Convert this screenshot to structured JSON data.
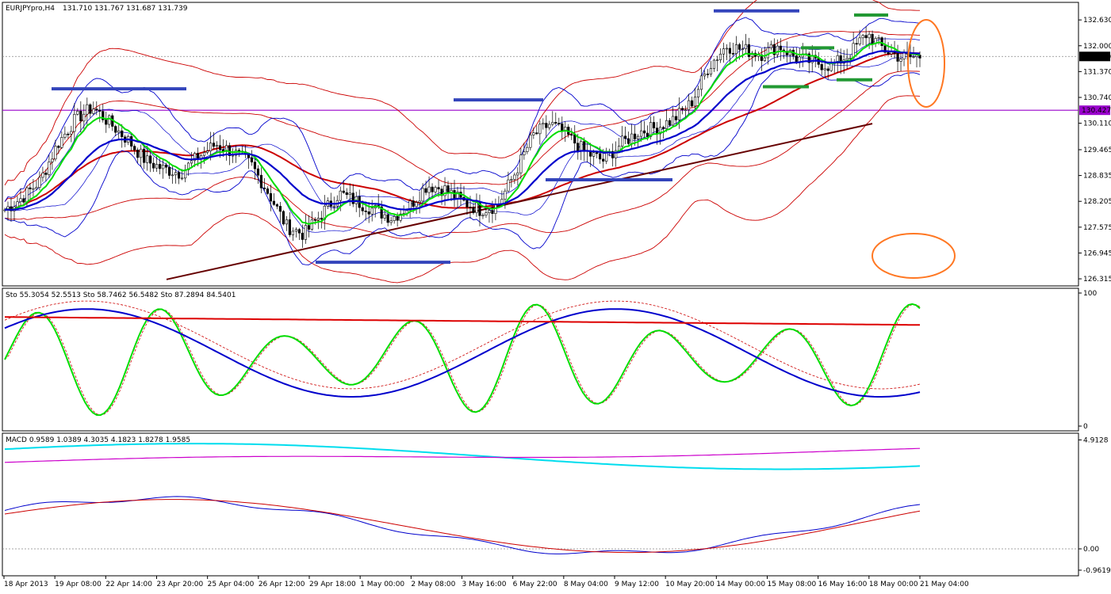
{
  "header": {
    "symbol": "EURJPYpro,H4",
    "ohlc": "131.710 131.767 131.687 131.739"
  },
  "stoch_header": "Sto 55.3054 52.5513  Sto 58.7462 56.5482  Sto 87.2894 84.5401",
  "macd_header": "MACD 0.9589 1.0389 4.3035 4.1823 1.8278 1.9585",
  "colors": {
    "ema_fast": "#00dd00",
    "ema_slow": "#0000cc",
    "bollinger_red": "#cc0000",
    "bollinger_blue": "#0000cc",
    "trendline": "#660000",
    "level_line": "#9900cc",
    "support_marks": "#3344bb",
    "resistance_marks": "#229933",
    "highlight_ellipse": "#ff7722",
    "macd_cyan": "#00ddee",
    "macd_magenta": "#cc00cc"
  },
  "chart_data": [
    {
      "type": "candlestick",
      "title": "EURJPYpro,H4",
      "y_ticks": [
        "132.630",
        "132.000",
        "131.370",
        "130.740",
        "130.110",
        "129.465",
        "128.835",
        "128.205",
        "127.575",
        "126.945",
        "126.315"
      ],
      "current_price": "131.739",
      "level_price": "130.427",
      "ylim": [
        126.2,
        133.0
      ],
      "x_ticks": [
        "18 Apr 2013",
        "19 Apr 08:00",
        "22 Apr 14:00",
        "23 Apr 20:00",
        "25 Apr 04:00",
        "26 Apr 12:00",
        "29 Apr 18:00",
        "1 May 00:00",
        "2 May 08:00",
        "3 May 16:00",
        "6 May 22:00",
        "8 May 04:00",
        "9 May 12:00",
        "10 May 20:00",
        "14 May 00:00",
        "15 May 08:00",
        "16 May 16:00",
        "18 May 00:00",
        "21 May 04:00"
      ],
      "close_path": [
        128.0,
        128.3,
        128.7,
        129.6,
        130.2,
        130.5,
        130.1,
        129.7,
        129.2,
        129.0,
        128.9,
        129.3,
        129.6,
        129.4,
        129.1,
        128.4,
        127.6,
        127.4,
        127.9,
        128.4,
        128.2,
        128.0,
        127.8,
        128.1,
        128.6,
        128.5,
        128.2,
        128.0,
        128.1,
        128.9,
        129.8,
        130.1,
        129.8,
        129.4,
        129.2,
        129.6,
        129.9,
        130.0,
        130.2,
        130.6,
        131.5,
        132.0,
        131.9,
        131.8,
        132.0,
        131.7,
        131.6,
        131.5,
        131.8,
        132.3,
        131.9,
        131.7,
        131.739
      ]
    },
    {
      "type": "line",
      "title": "Stochastic",
      "y_ticks": [
        "100",
        "0"
      ],
      "ylim": [
        0,
        100
      ]
    },
    {
      "type": "line",
      "title": "MACD",
      "y_ticks": [
        "4.9128",
        "0.00",
        "-0.9619"
      ],
      "ylim": [
        -1.0,
        5.0
      ]
    }
  ]
}
